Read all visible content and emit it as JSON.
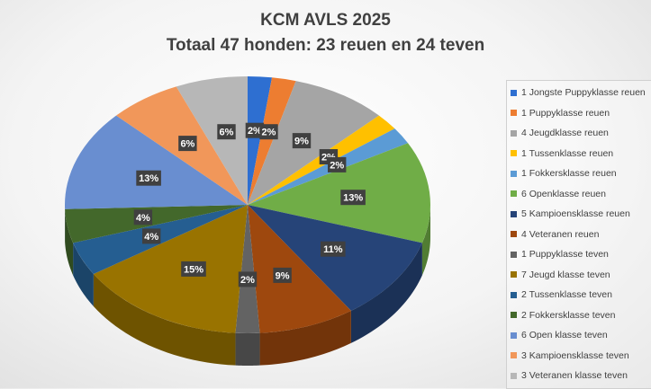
{
  "chart_data": {
    "type": "pie",
    "title": "KCM AVLS 2025",
    "subtitle": "Totaal 47  honden: 23 reuen en 24 teven",
    "slices": [
      {
        "label": "1  Jongste Puppyklasse reuen",
        "value": 1,
        "percent_label": "2%",
        "color": "#2e6fd1"
      },
      {
        "label": "1 Puppyklasse reuen",
        "value": 1,
        "percent_label": "2%",
        "color": "#ed7d31"
      },
      {
        "label": "4 Jeugdklasse reuen",
        "value": 4,
        "percent_label": "9%",
        "color": "#a5a5a5"
      },
      {
        "label": "1 Tussenklasse reuen",
        "value": 1,
        "percent_label": "2%",
        "color": "#ffc000"
      },
      {
        "label": "1 Fokkersklasse reuen",
        "value": 1,
        "percent_label": "2%",
        "color": "#5b9bd5"
      },
      {
        "label": "6 Openklasse reuen",
        "value": 6,
        "percent_label": "13%",
        "color": "#70ad47"
      },
      {
        "label": "5 Kampioensklasse reuen",
        "value": 5,
        "percent_label": "11%",
        "color": "#264478"
      },
      {
        "label": "4 Veteranen reuen",
        "value": 4,
        "percent_label": "9%",
        "color": "#9e480e"
      },
      {
        "label": "1 Puppyklasse teven",
        "value": 1,
        "percent_label": "2%",
        "color": "#636363"
      },
      {
        "label": "7 Jeugd klasse teven",
        "value": 7,
        "percent_label": "15%",
        "color": "#997300"
      },
      {
        "label": "2 Tussenklasse teven",
        "value": 2,
        "percent_label": "4%",
        "color": "#255e91"
      },
      {
        "label": "2 Fokkersklasse teven",
        "value": 2,
        "percent_label": "4%",
        "color": "#43682b"
      },
      {
        "label": "6 Open klasse teven",
        "value": 6,
        "percent_label": "13%",
        "color": "#698ed0"
      },
      {
        "label": "3 Kampioensklasse teven",
        "value": 3,
        "percent_label": "6%",
        "color": "#f1975a"
      },
      {
        "label": "3 Veteranen klasse teven",
        "value": 3,
        "percent_label": "6%",
        "color": "#b7b7b7"
      }
    ],
    "legend_position": "right",
    "style": "3d-pie"
  }
}
